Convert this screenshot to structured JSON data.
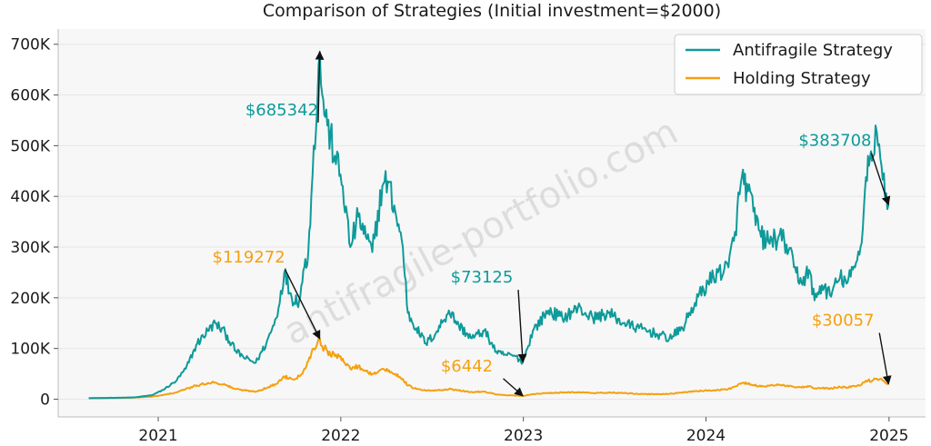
{
  "chart_data": {
    "type": "line",
    "title": "Comparison of Strategies (Initial investment=$2000)",
    "xlabel": "",
    "ylabel": "",
    "xlim": [
      "2020-06-15",
      "2025-03-15"
    ],
    "ylim": [
      -35000,
      730000
    ],
    "x_ticks": [
      "2021-01-01",
      "2022-01-01",
      "2023-01-01",
      "2024-01-01",
      "2025-01-01"
    ],
    "x_tick_labels": [
      "2021",
      "2022",
      "2023",
      "2024",
      "2025"
    ],
    "y_ticks": [
      0,
      100000,
      200000,
      300000,
      400000,
      500000,
      600000,
      700000
    ],
    "y_tick_labels": [
      "0",
      "100K",
      "200K",
      "300K",
      "400K",
      "500K",
      "600K",
      "700K"
    ],
    "grid": "horizontal",
    "legend_placement": "top-right",
    "watermark": "antifragile-portfolio.com",
    "series": [
      {
        "name": "Antifragile Strategy",
        "color": "#0e9a9a",
        "points": [
          [
            "2020-08-15",
            2000
          ],
          [
            "2020-10-01",
            2600
          ],
          [
            "2020-11-15",
            3500
          ],
          [
            "2020-12-20",
            8000
          ],
          [
            "2021-01-10",
            18000
          ],
          [
            "2021-02-05",
            35000
          ],
          [
            "2021-02-25",
            60000
          ],
          [
            "2021-03-20",
            110000
          ],
          [
            "2021-04-10",
            135000
          ],
          [
            "2021-04-25",
            150000
          ],
          [
            "2021-05-15",
            130000
          ],
          [
            "2021-06-05",
            95000
          ],
          [
            "2021-06-25",
            80000
          ],
          [
            "2021-07-15",
            72000
          ],
          [
            "2021-08-05",
            110000
          ],
          [
            "2021-08-25",
            160000
          ],
          [
            "2021-09-10",
            250000
          ],
          [
            "2021-09-25",
            200000
          ],
          [
            "2021-10-10",
            195000
          ],
          [
            "2021-10-20",
            260000
          ],
          [
            "2021-10-28",
            290000
          ],
          [
            "2021-11-03",
            400000
          ],
          [
            "2021-11-08",
            500000
          ],
          [
            "2021-11-15",
            580000
          ],
          [
            "2021-11-20",
            685342
          ],
          [
            "2021-11-25",
            600000
          ],
          [
            "2021-12-05",
            540000
          ],
          [
            "2021-12-20",
            480000
          ],
          [
            "2022-01-05",
            420000
          ],
          [
            "2022-01-20",
            300000
          ],
          [
            "2022-02-05",
            360000
          ],
          [
            "2022-02-20",
            320000
          ],
          [
            "2022-03-05",
            290000
          ],
          [
            "2022-03-25",
            420000
          ],
          [
            "2022-04-05",
            430000
          ],
          [
            "2022-04-20",
            370000
          ],
          [
            "2022-05-05",
            300000
          ],
          [
            "2022-05-15",
            170000
          ],
          [
            "2022-06-01",
            140000
          ],
          [
            "2022-06-20",
            110000
          ],
          [
            "2022-07-10",
            130000
          ],
          [
            "2022-08-05",
            175000
          ],
          [
            "2022-08-25",
            145000
          ],
          [
            "2022-09-20",
            120000
          ],
          [
            "2022-10-15",
            135000
          ],
          [
            "2022-11-10",
            90000
          ],
          [
            "2022-11-25",
            88000
          ],
          [
            "2022-12-15",
            85000
          ],
          [
            "2022-12-31",
            73125
          ],
          [
            "2023-01-20",
            135000
          ],
          [
            "2023-02-20",
            175000
          ],
          [
            "2023-03-20",
            160000
          ],
          [
            "2023-04-20",
            180000
          ],
          [
            "2023-05-20",
            160000
          ],
          [
            "2023-06-20",
            170000
          ],
          [
            "2023-07-20",
            150000
          ],
          [
            "2023-08-20",
            140000
          ],
          [
            "2023-09-20",
            130000
          ],
          [
            "2023-10-20",
            120000
          ],
          [
            "2023-11-15",
            140000
          ],
          [
            "2023-12-10",
            190000
          ],
          [
            "2024-01-05",
            230000
          ],
          [
            "2024-01-25",
            250000
          ],
          [
            "2024-02-15",
            260000
          ],
          [
            "2024-02-28",
            330000
          ],
          [
            "2024-03-13",
            440000
          ],
          [
            "2024-03-25",
            410000
          ],
          [
            "2024-04-05",
            370000
          ],
          [
            "2024-04-20",
            320000
          ],
          [
            "2024-05-05",
            310000
          ],
          [
            "2024-05-25",
            320000
          ],
          [
            "2024-06-10",
            305000
          ],
          [
            "2024-06-25",
            260000
          ],
          [
            "2024-07-10",
            230000
          ],
          [
            "2024-07-25",
            255000
          ],
          [
            "2024-08-05",
            195000
          ],
          [
            "2024-08-20",
            225000
          ],
          [
            "2024-09-05",
            205000
          ],
          [
            "2024-09-25",
            240000
          ],
          [
            "2024-10-10",
            230000
          ],
          [
            "2024-10-25",
            260000
          ],
          [
            "2024-11-05",
            300000
          ],
          [
            "2024-11-12",
            380000
          ],
          [
            "2024-11-20",
            480000
          ],
          [
            "2024-11-28",
            470000
          ],
          [
            "2024-12-05",
            540000
          ],
          [
            "2024-12-10",
            500000
          ],
          [
            "2024-12-17",
            460000
          ],
          [
            "2024-12-24",
            400000
          ],
          [
            "2024-12-31",
            383708
          ]
        ]
      },
      {
        "name": "Holding Strategy",
        "color": "#f5a00f",
        "points": [
          [
            "2020-08-15",
            2000
          ],
          [
            "2020-10-01",
            2200
          ],
          [
            "2020-11-15",
            3200
          ],
          [
            "2020-12-20",
            5000
          ],
          [
            "2021-01-10",
            8000
          ],
          [
            "2021-02-05",
            13000
          ],
          [
            "2021-02-25",
            20000
          ],
          [
            "2021-03-20",
            27000
          ],
          [
            "2021-04-10",
            32000
          ],
          [
            "2021-04-25",
            33000
          ],
          [
            "2021-05-15",
            28000
          ],
          [
            "2021-06-05",
            20000
          ],
          [
            "2021-06-25",
            17000
          ],
          [
            "2021-07-15",
            15000
          ],
          [
            "2021-08-05",
            22000
          ],
          [
            "2021-08-25",
            30000
          ],
          [
            "2021-09-10",
            45000
          ],
          [
            "2021-09-25",
            40000
          ],
          [
            "2021-10-10",
            45000
          ],
          [
            "2021-10-20",
            60000
          ],
          [
            "2021-10-28",
            75000
          ],
          [
            "2021-11-03",
            90000
          ],
          [
            "2021-11-08",
            100000
          ],
          [
            "2021-11-15",
            110000
          ],
          [
            "2021-11-20",
            119272
          ],
          [
            "2021-11-25",
            105000
          ],
          [
            "2021-12-05",
            95000
          ],
          [
            "2021-12-20",
            85000
          ],
          [
            "2022-01-05",
            80000
          ],
          [
            "2022-01-20",
            60000
          ],
          [
            "2022-02-05",
            65000
          ],
          [
            "2022-02-20",
            55000
          ],
          [
            "2022-03-05",
            50000
          ],
          [
            "2022-03-25",
            60000
          ],
          [
            "2022-04-05",
            55000
          ],
          [
            "2022-04-20",
            50000
          ],
          [
            "2022-05-05",
            40000
          ],
          [
            "2022-05-15",
            27000
          ],
          [
            "2022-06-01",
            20000
          ],
          [
            "2022-06-20",
            17000
          ],
          [
            "2022-07-10",
            17000
          ],
          [
            "2022-08-05",
            20000
          ],
          [
            "2022-08-25",
            17000
          ],
          [
            "2022-09-20",
            14000
          ],
          [
            "2022-10-15",
            15000
          ],
          [
            "2022-11-10",
            9000
          ],
          [
            "2022-11-25",
            8000
          ],
          [
            "2022-12-15",
            7000
          ],
          [
            "2022-12-31",
            6442
          ],
          [
            "2023-01-20",
            10000
          ],
          [
            "2023-02-20",
            12000
          ],
          [
            "2023-03-20",
            13000
          ],
          [
            "2023-04-20",
            14000
          ],
          [
            "2023-05-20",
            12000
          ],
          [
            "2023-06-20",
            13000
          ],
          [
            "2023-07-20",
            12000
          ],
          [
            "2023-08-20",
            10000
          ],
          [
            "2023-09-20",
            10000
          ],
          [
            "2023-10-20",
            10500
          ],
          [
            "2023-11-15",
            13000
          ],
          [
            "2023-12-10",
            16000
          ],
          [
            "2024-01-05",
            17000
          ],
          [
            "2024-01-25",
            18000
          ],
          [
            "2024-02-15",
            20000
          ],
          [
            "2024-02-28",
            25000
          ],
          [
            "2024-03-13",
            32000
          ],
          [
            "2024-03-25",
            30000
          ],
          [
            "2024-04-05",
            28000
          ],
          [
            "2024-04-20",
            25000
          ],
          [
            "2024-05-05",
            27000
          ],
          [
            "2024-05-25",
            28000
          ],
          [
            "2024-06-10",
            26000
          ],
          [
            "2024-06-25",
            24000
          ],
          [
            "2024-07-10",
            23000
          ],
          [
            "2024-07-25",
            25000
          ],
          [
            "2024-08-05",
            21000
          ],
          [
            "2024-08-20",
            22000
          ],
          [
            "2024-09-05",
            21000
          ],
          [
            "2024-09-25",
            24000
          ],
          [
            "2024-10-10",
            23000
          ],
          [
            "2024-10-25",
            26000
          ],
          [
            "2024-11-05",
            27000
          ],
          [
            "2024-11-12",
            33000
          ],
          [
            "2024-11-20",
            37000
          ],
          [
            "2024-11-28",
            36000
          ],
          [
            "2024-12-05",
            40000
          ],
          [
            "2024-12-10",
            38000
          ],
          [
            "2024-12-17",
            40000
          ],
          [
            "2024-12-24",
            33000
          ],
          [
            "2024-12-31",
            30057
          ]
        ]
      }
    ],
    "annotations": [
      {
        "text": "$685342",
        "series": "Antifragile Strategy",
        "x": "2021-11-20",
        "y": 685342,
        "text_x": "2021-09-05",
        "text_y": 560000
      },
      {
        "text": "$119272",
        "series": "Holding Strategy",
        "x": "2021-11-20",
        "y": 119272,
        "text_x": "2021-07-01",
        "text_y": 270000
      },
      {
        "text": "$73125",
        "series": "Antifragile Strategy",
        "x": "2022-12-31",
        "y": 73125,
        "text_x": "2022-10-10",
        "text_y": 230000
      },
      {
        "text": "$6442",
        "series": "Holding Strategy",
        "x": "2022-12-31",
        "y": 6442,
        "text_x": "2022-09-10",
        "text_y": 55000
      },
      {
        "text": "$383708",
        "series": "Antifragile Strategy",
        "x": "2024-12-31",
        "y": 383708,
        "text_x": "2024-09-15",
        "text_y": 500000
      },
      {
        "text": "$30057",
        "series": "Holding Strategy",
        "x": "2024-12-31",
        "y": 30057,
        "text_x": "2024-10-01",
        "text_y": 145000
      }
    ]
  }
}
